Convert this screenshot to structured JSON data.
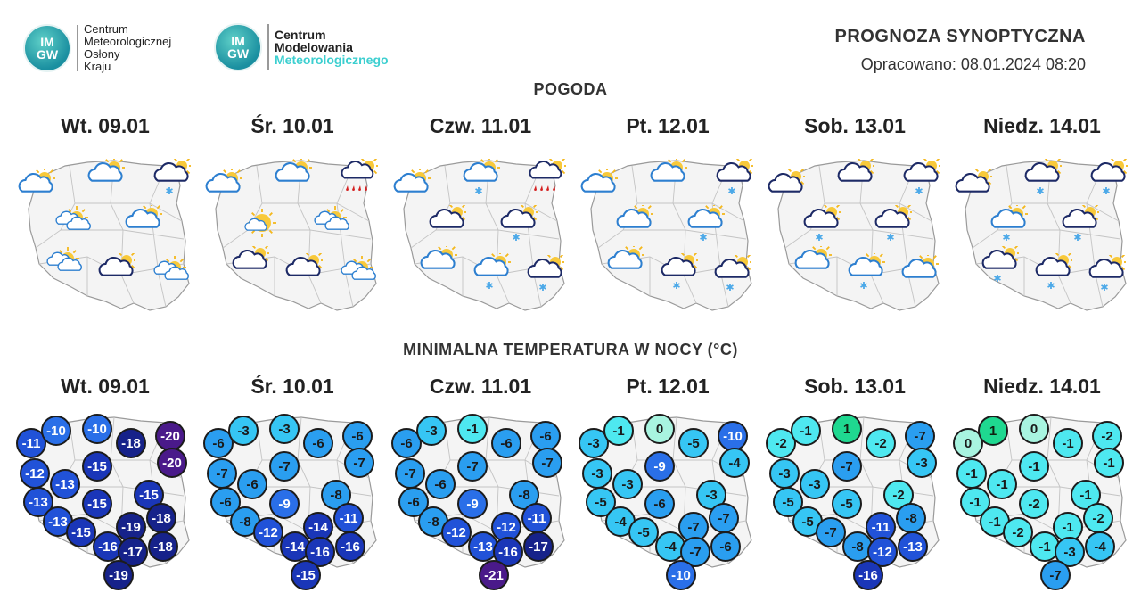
{
  "header": {
    "logo1": {
      "badge_top": "IM",
      "badge_bottom": "GW",
      "lines": [
        "Centrum",
        "Meteorologicznej",
        "Osłony",
        "Kraju"
      ]
    },
    "logo2": {
      "badge_top": "IM",
      "badge_bottom": "GW",
      "lines": [
        "Centrum",
        "Modelowania"
      ],
      "highlight": "Meteorologicznego"
    },
    "title": "PROGNOZA SYNOPTYCZNA",
    "subtitle": "Opracowano: 08.01.2024 08:20"
  },
  "weather_section": {
    "title": "POGODA"
  },
  "temp_section": {
    "title": "MINIMALNA TEMPERATURA W NOCY (°C)"
  },
  "days": [
    {
      "label": "Wt. 09.01"
    },
    {
      "label": "Śr. 10.01"
    },
    {
      "label": "Czw. 11.01"
    },
    {
      "label": "Pt. 12.01"
    },
    {
      "label": "Sob. 13.01"
    },
    {
      "label": "Niedz. 14.01"
    }
  ],
  "weather_icons": [
    [
      "partly-cloudy",
      "partly-cloudy",
      "cloudy-sun-snow",
      "sun-clouds",
      "partly-cloudy",
      "sun-clouds",
      "cloudy-sun",
      "sun-clouds"
    ],
    [
      "partly-cloudy",
      "partly-cloudy",
      "cloudy-rain",
      "sunny-cloud",
      "sun-clouds",
      "cloudy-sun",
      "cloudy-sun",
      "sun-clouds"
    ],
    [
      "partly-cloudy",
      "partly-cloudy-snow",
      "cloudy-sun-rain",
      "cloudy-sun",
      "cloudy-sun-snow",
      "partly-cloudy",
      "partly-cloudy-snow",
      "cloudy-sun-snow"
    ],
    [
      "partly-cloudy",
      "partly-cloudy",
      "cloudy-sun-snow",
      "partly-cloudy",
      "partly-cloudy-snow",
      "partly-cloudy",
      "cloudy-sun-snow",
      "cloudy-sun-snow"
    ],
    [
      "cloudy-sun",
      "cloudy-sun",
      "cloudy-sun-snow",
      "cloudy-sun-snow",
      "cloudy-sun-snow",
      "partly-cloudy",
      "partly-cloudy-snow",
      "partly-cloudy"
    ],
    [
      "cloudy-sun",
      "cloudy-sun-snow",
      "cloudy-sun-snow",
      "partly-cloudy-snow",
      "cloudy-sun-snow",
      "cloudy-sun-snow",
      "cloudy-sun-snow",
      "cloudy-sun-snow"
    ]
  ],
  "temperatures": [
    [
      "-11",
      "-10",
      "-10",
      "-18",
      "-20",
      "-20",
      "-12",
      "-13",
      "-15",
      "-15",
      "-13",
      "-15",
      "-19",
      "-18",
      "-13",
      "-15",
      "-16",
      "-17",
      "-18",
      "-19"
    ],
    [
      "-6",
      "-3",
      "-3",
      "-6",
      "-6",
      "-7",
      "-7",
      "-6",
      "-7",
      "-8",
      "-6",
      "-9",
      "-14",
      "-11",
      "-8",
      "-12",
      "-14",
      "-16",
      "-16",
      "-15"
    ],
    [
      "-6",
      "-3",
      "-1",
      "-6",
      "-6",
      "-7",
      "-7",
      "-6",
      "-7",
      "-8",
      "-6",
      "-9",
      "-12",
      "-11",
      "-8",
      "-12",
      "-13",
      "-16",
      "-17",
      "-21"
    ],
    [
      "-3",
      "-1",
      "0",
      "-5",
      "-10",
      "-4",
      "-3",
      "-3",
      "-9",
      "-3",
      "-5",
      "-6",
      "-7",
      "-7",
      "-4",
      "-5",
      "-4",
      "-7",
      "-6",
      "-10"
    ],
    [
      "-2",
      "-1",
      "1",
      "-2",
      "-7",
      "-3",
      "-3",
      "-3",
      "-7",
      "-2",
      "-5",
      "-5",
      "-11",
      "-8",
      "-5",
      "-7",
      "-8",
      "-12",
      "-13",
      "-16"
    ],
    [
      "0",
      "1",
      "0",
      "-1",
      "-2",
      "-1",
      "-1",
      "-1",
      "-1",
      "-1",
      "-1",
      "-2",
      "-1",
      "-2",
      "-1",
      "-2",
      "-1",
      "-3",
      "-4",
      "-7"
    ]
  ],
  "colors": {
    "temp_scale": "blue-to-purple",
    "snow": "#4aa8e8",
    "rain": "#d42020",
    "sun": "#f4b81c",
    "cloud_outline": "#1d2a66"
  }
}
